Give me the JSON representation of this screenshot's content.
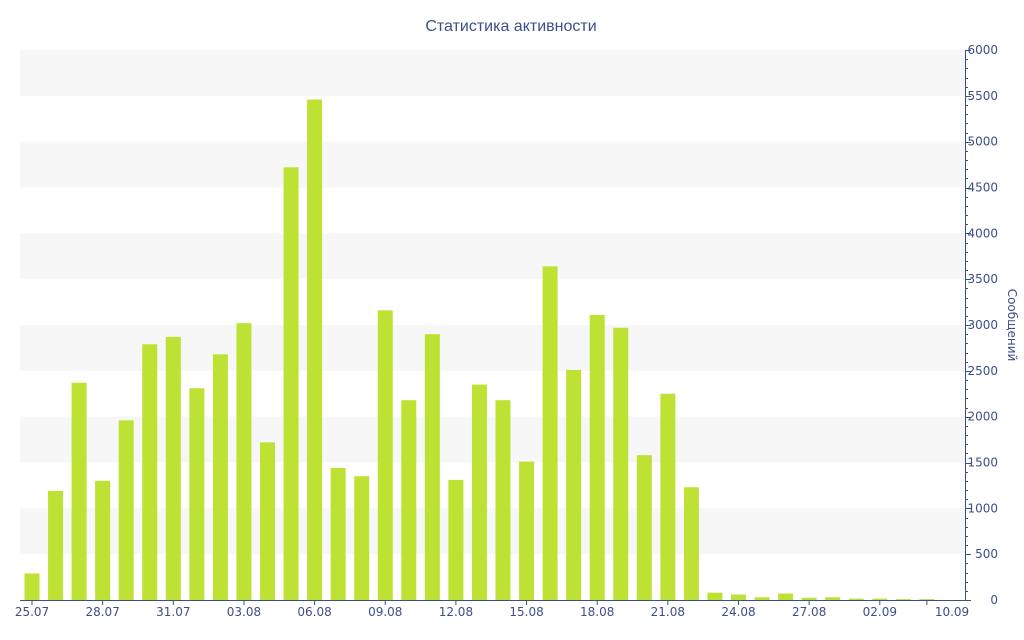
{
  "chart_data": {
    "type": "bar",
    "title": "Статистика активности",
    "ylabel": "Сообщений",
    "ylim": [
      0,
      6000
    ],
    "y_ticks": [
      0,
      500,
      1000,
      1500,
      2000,
      2500,
      3000,
      3500,
      4000,
      4500,
      5000,
      5500,
      6000
    ],
    "x_tick_labels": [
      "25.07",
      "28.07",
      "31.07",
      "03.08",
      "06.08",
      "09.08",
      "12.08",
      "15.08",
      "18.08",
      "21.08",
      "24.08",
      "27.08",
      "02.09",
      "10.09"
    ],
    "categories": [
      "25.07",
      "26.07",
      "27.07",
      "28.07",
      "29.07",
      "30.07",
      "31.07",
      "01.08",
      "02.08",
      "03.08",
      "04.08",
      "05.08",
      "06.08",
      "07.08",
      "08.08",
      "09.08",
      "10.08",
      "11.08",
      "12.08",
      "13.08",
      "14.08",
      "15.08",
      "16.08",
      "17.08",
      "18.08",
      "19.08",
      "20.08",
      "21.08",
      "22.08",
      "23.08",
      "24.08",
      "25.08",
      "26.08",
      "27.08",
      "28.08",
      "29.08",
      "02.09",
      "05.09",
      "10.09"
    ],
    "values": [
      290,
      1190,
      2370,
      1300,
      1960,
      2790,
      2870,
      2310,
      2680,
      3020,
      1720,
      4720,
      5460,
      1440,
      1350,
      3160,
      2180,
      2900,
      1310,
      2350,
      2180,
      1510,
      3640,
      2510,
      3110,
      2970,
      1580,
      2250,
      1230,
      80,
      60,
      30,
      70,
      25,
      30,
      15,
      15,
      10,
      10
    ],
    "colors": {
      "bar": "#bde233",
      "band": "#f7f7f7",
      "axis": "#3d4f8a",
      "text": "#3d4f8a"
    },
    "grid": true,
    "y_axis_side": "right"
  }
}
